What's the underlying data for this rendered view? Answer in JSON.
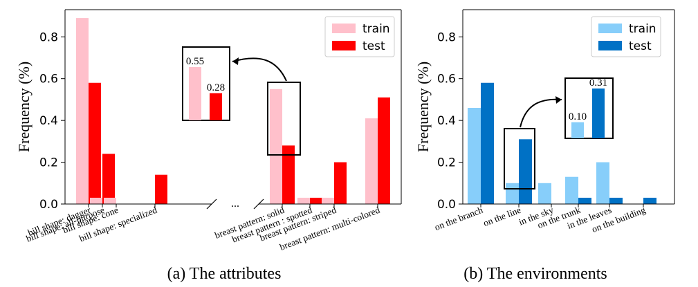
{
  "chart_data": [
    {
      "type": "bar",
      "caption": "(a) The attributes",
      "ylabel": "Frequency (%)",
      "ylim": [
        0,
        0.93
      ],
      "yticks": [
        "0.0",
        "0.2",
        "0.4",
        "0.6",
        "0.8"
      ],
      "categories": [
        "bill shape: dagger",
        "bill shape: all-purpose",
        "bill shape: cone",
        "bill shape: specialized",
        "breast pattern: solid",
        "breast pattern : spotted",
        "breast pattern: striped",
        "breast pattern: multi-colored"
      ],
      "series": [
        {
          "name": "train",
          "color": "#ffc0cb",
          "values": [
            0.89,
            0.03,
            0.03,
            0.0,
            0.55,
            0.03,
            0.03,
            0.41
          ]
        },
        {
          "name": "test",
          "color": "#ff0000",
          "values": [
            0.58,
            0.24,
            0.0,
            0.14,
            0.28,
            0.03,
            0.2,
            0.51
          ]
        }
      ],
      "break_marker": "...",
      "legend": "top-right",
      "highlight": {
        "category": "breast pattern: solid",
        "labels": [
          "0.55",
          "0.28"
        ]
      }
    },
    {
      "type": "bar",
      "caption": "(b) The environments",
      "ylabel": "Frequency (%)",
      "ylim": [
        0,
        0.93
      ],
      "yticks": [
        "0.0",
        "0.2",
        "0.4",
        "0.6",
        "0.8"
      ],
      "categories": [
        "on the branch",
        "on the line",
        "in the sky",
        "on the trunk",
        "in the leaves",
        "on the building"
      ],
      "series": [
        {
          "name": "train",
          "color": "#87cefa",
          "values": [
            0.46,
            0.1,
            0.1,
            0.13,
            0.2,
            0.0
          ]
        },
        {
          "name": "test",
          "color": "#0071c5",
          "values": [
            0.58,
            0.31,
            0.0,
            0.03,
            0.03,
            0.03
          ]
        }
      ],
      "legend": "top-right",
      "highlight": {
        "category": "on the line",
        "labels": [
          "0.10",
          "0.31"
        ]
      }
    }
  ]
}
